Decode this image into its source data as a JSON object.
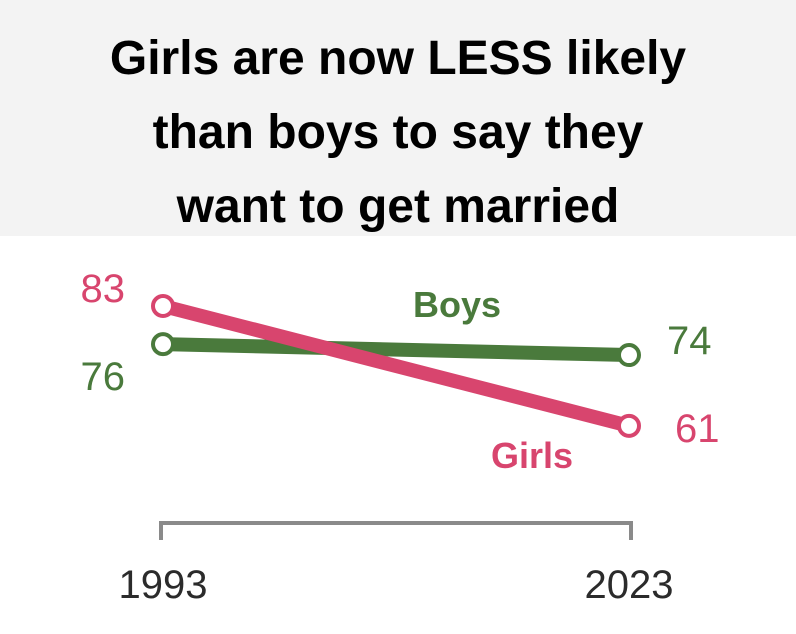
{
  "title_lines": [
    "Girls are now LESS likely",
    "than boys to say they",
    "want to get married"
  ],
  "colors": {
    "boys": "#4a7a3c",
    "girls": "#d8456e",
    "axis": "#8a8a8a",
    "title_band": "#f3f3f3"
  },
  "chart_data": {
    "type": "line",
    "title": "Girls are now LESS likely than boys to say they want to get married",
    "x": [
      "1993",
      "2023"
    ],
    "series": [
      {
        "name": "Boys",
        "values": [
          76,
          74
        ]
      },
      {
        "name": "Girls",
        "values": [
          83,
          61
        ]
      }
    ],
    "xlabel": "",
    "ylabel": "",
    "grid": false,
    "legend": "inline labels"
  }
}
